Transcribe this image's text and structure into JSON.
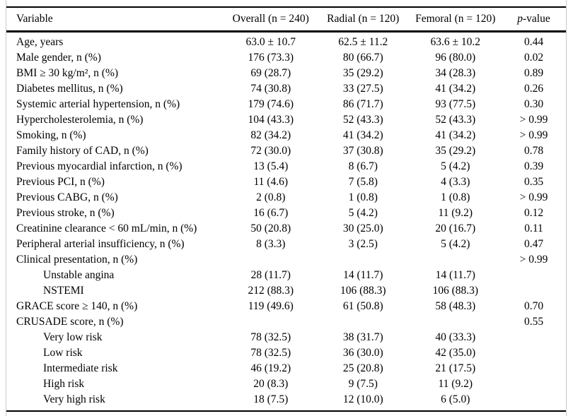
{
  "table": {
    "header": {
      "variable": "Variable",
      "overall": "Overall (n = 240)",
      "radial": "Radial (n = 120)",
      "femoral": "Femoral (n = 120)",
      "p_italic": "p",
      "p_rest": "-value"
    },
    "rows": [
      {
        "label": "Age, years",
        "indent": false,
        "overall": "63.0 ± 10.7",
        "radial": "62.5 ± 11.2",
        "femoral": "63.6 ± 10.2",
        "p": "0.44"
      },
      {
        "label": "Male gender, n (%)",
        "indent": false,
        "overall": "176 (73.3)",
        "radial": "80 (66.7)",
        "femoral": "96 (80.0)",
        "p": "0.02"
      },
      {
        "label": "BMI ≥ 30 kg/m², n (%)",
        "indent": false,
        "overall": "69 (28.7)",
        "radial": "35 (29.2)",
        "femoral": "34 (28.3)",
        "p": "0.89"
      },
      {
        "label": "Diabetes mellitus, n (%)",
        "indent": false,
        "overall": "74 (30.8)",
        "radial": "33 (27.5)",
        "femoral": "41 (34.2)",
        "p": "0.26"
      },
      {
        "label": "Systemic arterial hypertension, n (%)",
        "indent": false,
        "overall": "179 (74.6)",
        "radial": "86 (71.7)",
        "femoral": "93 (77.5)",
        "p": "0.30"
      },
      {
        "label": "Hypercholesterolemia, n (%)",
        "indent": false,
        "overall": "104 (43.3)",
        "radial": "52 (43.3)",
        "femoral": "52 (43.3)",
        "p": "> 0.99"
      },
      {
        "label": "Smoking, n (%)",
        "indent": false,
        "overall": "82 (34.2)",
        "radial": "41 (34.2)",
        "femoral": "41 (34.2)",
        "p": "> 0.99"
      },
      {
        "label": "Family history of CAD, n (%)",
        "indent": false,
        "overall": "72 (30.0)",
        "radial": "37 (30.8)",
        "femoral": "35 (29.2)",
        "p": "0.78"
      },
      {
        "label": "Previous myocardial infarction, n (%)",
        "indent": false,
        "overall": "13 (5.4)",
        "radial": "8 (6.7)",
        "femoral": "5 (4.2)",
        "p": "0.39"
      },
      {
        "label": "Previous PCI, n (%)",
        "indent": false,
        "overall": "11 (4.6)",
        "radial": "7 (5.8)",
        "femoral": "4 (3.3)",
        "p": "0.35"
      },
      {
        "label": "Previous CABG, n (%)",
        "indent": false,
        "overall": "2 (0.8)",
        "radial": "1 (0.8)",
        "femoral": "1 (0.8)",
        "p": "> 0.99"
      },
      {
        "label": "Previous stroke, n (%)",
        "indent": false,
        "overall": "16 (6.7)",
        "radial": "5 (4.2)",
        "femoral": "11 (9.2)",
        "p": "0.12"
      },
      {
        "label": "Creatinine clearance < 60 mL/min, n (%)",
        "indent": false,
        "overall": "50 (20.8)",
        "radial": "30 (25.0)",
        "femoral": "20 (16.7)",
        "p": "0.11"
      },
      {
        "label": "Peripheral arterial insufficiency, n (%)",
        "indent": false,
        "overall": "8 (3.3)",
        "radial": "3 (2.5)",
        "femoral": "5 (4.2)",
        "p": "0.47"
      },
      {
        "label": "Clinical presentation, n (%)",
        "indent": false,
        "overall": "",
        "radial": "",
        "femoral": "",
        "p": "> 0.99"
      },
      {
        "label": "Unstable angina",
        "indent": true,
        "overall": "28 (11.7)",
        "radial": "14 (11.7)",
        "femoral": "14 (11.7)",
        "p": ""
      },
      {
        "label": "NSTEMI",
        "indent": true,
        "overall": "212 (88.3)",
        "radial": "106 (88.3)",
        "femoral": "106 (88.3)",
        "p": ""
      },
      {
        "label": "GRACE score ≥ 140, n (%)",
        "indent": false,
        "overall": "119 (49.6)",
        "radial": "61 (50.8)",
        "femoral": "58 (48.3)",
        "p": "0.70"
      },
      {
        "label": "CRUSADE score, n (%)",
        "indent": false,
        "overall": "",
        "radial": "",
        "femoral": "",
        "p": "0.55"
      },
      {
        "label": "Very low risk",
        "indent": true,
        "overall": "78 (32.5)",
        "radial": "38 (31.7)",
        "femoral": "40 (33.3)",
        "p": ""
      },
      {
        "label": "Low risk",
        "indent": true,
        "overall": "78 (32.5)",
        "radial": "36 (30.0)",
        "femoral": "42 (35.0)",
        "p": ""
      },
      {
        "label": "Intermediate risk",
        "indent": true,
        "overall": "46 (19.2)",
        "radial": "25 (20.8)",
        "femoral": "21 (17.5)",
        "p": ""
      },
      {
        "label": "High risk",
        "indent": true,
        "overall": "20 (8.3)",
        "radial": "9 (7.5)",
        "femoral": "11 (9.2)",
        "p": ""
      },
      {
        "label": "Very high risk",
        "indent": true,
        "overall": "18 (7.5)",
        "radial": "12 (10.0)",
        "femoral": "6 (5.0)",
        "p": ""
      }
    ]
  },
  "colors": {
    "rule": "#000000",
    "frame_edge": "#c9c9c9",
    "background": "#ffffff",
    "text": "#000000"
  }
}
